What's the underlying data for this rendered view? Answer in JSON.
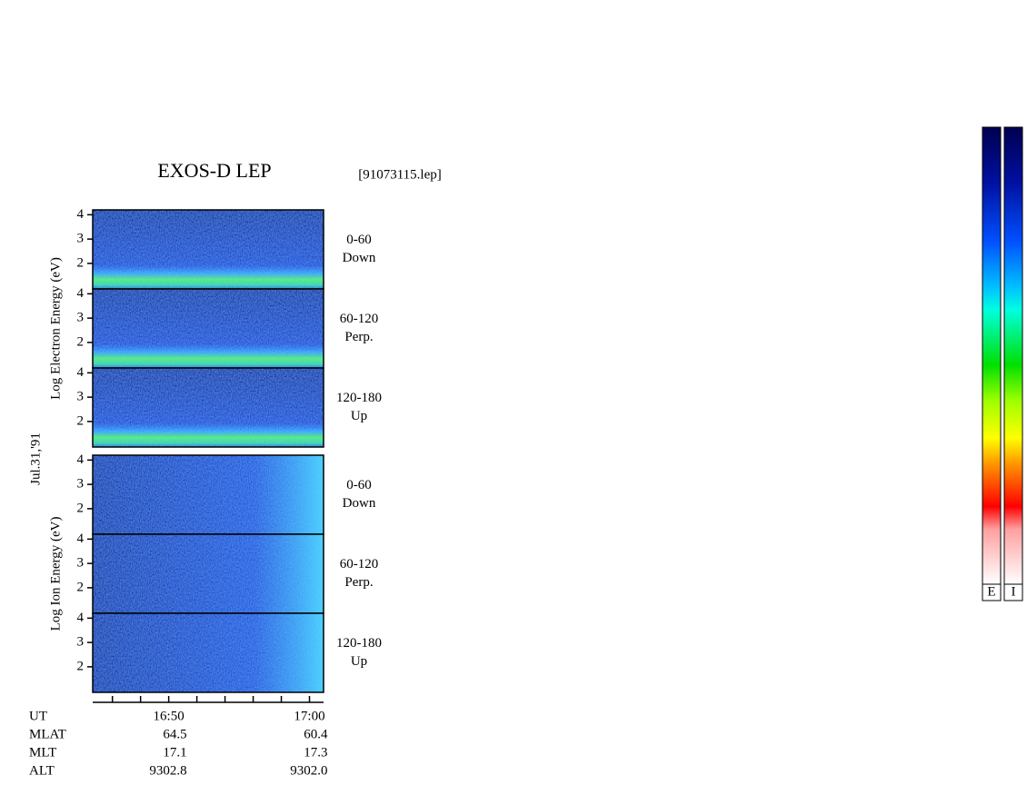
{
  "chart_data": {
    "type": "spectrogram",
    "title": "EXOS-D LEP",
    "subtitle": "[91073115.lep]",
    "date_label": "Jul.31,'91",
    "ylim": [
      0.95,
      4.2
    ],
    "yticks": [
      2,
      3,
      4
    ],
    "xlim": [
      44.6,
      61
    ],
    "xticks": [
      {
        "value": 46,
        "label": null
      },
      {
        "value": 48,
        "label": null
      },
      {
        "value": 50,
        "label": "16:50"
      },
      {
        "value": 52,
        "label": null
      },
      {
        "value": 54,
        "label": null
      },
      {
        "value": 56,
        "label": null
      },
      {
        "value": 58,
        "label": null
      },
      {
        "value": 60,
        "label": "17:00"
      }
    ],
    "x_label": "UT",
    "groups": [
      {
        "label": "Log   Electron   Energy (eV)",
        "kind": "electron",
        "panels": [
          {
            "lines": [
              "0-60",
              "Down"
            ]
          },
          {
            "lines": [
              "60-120",
              "Perp."
            ]
          },
          {
            "lines": [
              "120-180",
              "Up"
            ]
          }
        ]
      },
      {
        "label": "Log   Ion   Energy (eV)",
        "kind": "ion",
        "panels": [
          {
            "lines": [
              "0-60",
              "Down"
            ]
          },
          {
            "lines": [
              "60-120",
              "Perp."
            ]
          },
          {
            "lines": [
              "120-180",
              "Up"
            ]
          }
        ]
      }
    ],
    "ephemeris": [
      {
        "name": "MLAT",
        "values": [
          "64.5",
          "60.4"
        ]
      },
      {
        "name": "MLT",
        "values": [
          "17.1",
          "17.3"
        ]
      },
      {
        "name": "ALT",
        "values": [
          "9302.8",
          "9302.0"
        ]
      }
    ],
    "colorbars": [
      "E",
      "I"
    ]
  }
}
